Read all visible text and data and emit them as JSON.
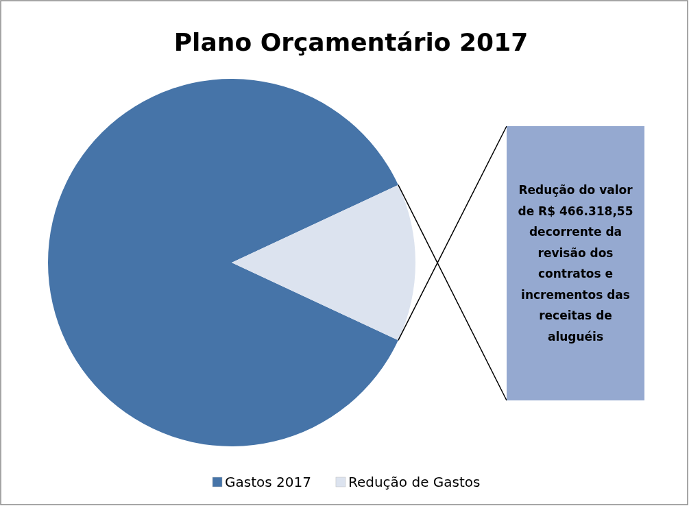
{
  "chart_data": {
    "type": "pie",
    "title": "Plano Orçamentário 2017",
    "categories": [
      "Gastos 2017",
      "Redução de Gastos"
    ],
    "values": [
      86.1,
      13.9
    ],
    "colors": [
      "#4674a8",
      "#dce3ef"
    ],
    "annotations": [
      "Redução do valor de R$ 466.318,55 decorrente da revisão dos contratos e incrementos das receitas de aluguéis"
    ],
    "legend": "bottom"
  }
}
